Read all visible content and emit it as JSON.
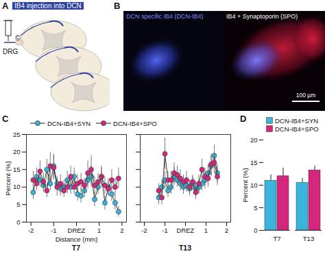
{
  "panel_labels": [
    "A",
    "B",
    "C",
    "D"
  ],
  "panel_a": {
    "title": "IB4 injection into DCN",
    "labels": [
      "©",
      "DRG"
    ]
  },
  "panel_b": {
    "images": [
      "DCN specific IB4 (DCN-IB4)",
      "IB4 + Synaptoporin (SPO)"
    ],
    "scale_bar": "100 µm"
  },
  "chart_data": [
    {
      "type": "line",
      "title": "T7",
      "xlabel": "Distance (mm)",
      "ylabel": "Percent (%)",
      "legend": "top",
      "x": [
        -1.9,
        -1.75,
        -1.6,
        -1.45,
        -1.3,
        -1.15,
        -1.0,
        -0.85,
        -0.7,
        -0.55,
        -0.4,
        -0.25,
        -0.1,
        0.05,
        0.2,
        0.35,
        0.5,
        0.65,
        0.8,
        0.95,
        1.1,
        1.25,
        1.4,
        1.55,
        1.7,
        1.85
      ],
      "series": [
        {
          "name": "DCN-IB4+SYN",
          "color": "#3ab4dc",
          "marker": "circle",
          "values": [
            8.5,
            13,
            12,
            10.5,
            15,
            11,
            16,
            11,
            9.5,
            10,
            12,
            10,
            13,
            8,
            7.5,
            9,
            12,
            13,
            6.5,
            10,
            13,
            5.5,
            10,
            8,
            5.5,
            3
          ],
          "errors": [
            2,
            2.5,
            2,
            2,
            3,
            2,
            3.5,
            2,
            2,
            2,
            2.5,
            2,
            2.5,
            2,
            2,
            2,
            2.5,
            3,
            2,
            2,
            2.5,
            2,
            2.5,
            2,
            2,
            1.5
          ]
        },
        {
          "name": "DCN-IB4+SPO",
          "color": "#d4267c",
          "marker": "circle",
          "values": [
            12,
            11,
            14.5,
            11.5,
            9,
            16,
            15.5,
            10,
            11,
            9,
            10,
            13,
            10,
            11,
            11.5,
            10.5,
            14,
            15,
            10.5,
            11.5,
            13,
            10.5,
            9.5,
            12,
            10,
            12.5
          ],
          "errors": [
            2.5,
            2,
            3,
            2.5,
            2,
            4,
            3.5,
            2.5,
            2.5,
            2,
            2,
            3,
            2,
            2.5,
            2.5,
            2,
            3.5,
            4,
            2.5,
            2.5,
            3,
            2.5,
            2,
            3,
            2.5,
            3
          ]
        }
      ],
      "xlim": [
        -2.2,
        2.2
      ],
      "xticks": [
        -2,
        -1,
        {
          "value": 0,
          "label": "DREZ"
        },
        1,
        2
      ],
      "ylim": [
        0,
        25
      ],
      "yticks": [
        0,
        5,
        10,
        15,
        20,
        25
      ]
    },
    {
      "type": "line",
      "title": "T13",
      "tick_labels": "x",
      "x": [
        -1.3,
        -1.15,
        -1.0,
        -0.85,
        -0.7,
        -0.55,
        -0.4,
        -0.25,
        -0.1,
        0.05,
        0.2,
        0.35,
        0.5,
        0.65,
        0.8,
        0.95,
        1.1,
        1.25,
        1.4,
        1.55
      ],
      "series": [
        {
          "name": "DCN-IB4+SYN",
          "color": "#3ab4dc",
          "marker": "circle",
          "values": [
            7,
            10,
            12,
            9,
            10,
            13,
            12,
            11,
            10,
            10.5,
            9.5,
            11,
            9.5,
            10,
            11,
            12,
            14,
            16,
            19,
            14
          ],
          "errors": [
            2,
            2,
            2.5,
            2,
            2,
            2.5,
            2,
            2,
            2,
            2,
            2,
            2,
            2,
            2,
            2,
            2.5,
            2.5,
            3,
            3,
            2.5
          ]
        },
        {
          "name": "DCN-IB4+SPO",
          "color": "#d4267c",
          "marker": "circle",
          "values": [
            9,
            7,
            19.5,
            12,
            12,
            14,
            13.5,
            12.5,
            11.5,
            12,
            10,
            11.5,
            8.5,
            11,
            15,
            13,
            12.5,
            16.5,
            17,
            13
          ],
          "errors": [
            2,
            2,
            4.5,
            2.5,
            2.5,
            3,
            2.5,
            2.5,
            2,
            2.5,
            2,
            2,
            2,
            2.5,
            3,
            2.5,
            2.5,
            3,
            3,
            2.5
          ]
        }
      ],
      "xlim": [
        -2.2,
        2.2
      ],
      "xticks": [
        -2,
        -1,
        {
          "value": 0,
          "label": "DREZ"
        },
        1,
        2
      ],
      "ylim": [
        0,
        25
      ],
      "yticks": [
        0,
        5,
        10,
        15,
        20,
        25
      ]
    },
    {
      "type": "bar",
      "ylabel": "Percent (%)",
      "legend": "top",
      "categories": [
        "T7",
        "T13"
      ],
      "series": [
        {
          "name": "DCN-IB4+SYN",
          "color": "#3ab4dc",
          "values": [
            11,
            10.5
          ],
          "errors": [
            1.3,
            1.0
          ]
        },
        {
          "name": "DCN-IB4+SPO",
          "color": "#d4267c",
          "values": [
            12,
            13.3
          ],
          "errors": [
            1.8,
            0.9
          ]
        }
      ],
      "ylim": [
        0,
        20
      ],
      "yticks": [
        0,
        5,
        10,
        15,
        20
      ]
    }
  ]
}
